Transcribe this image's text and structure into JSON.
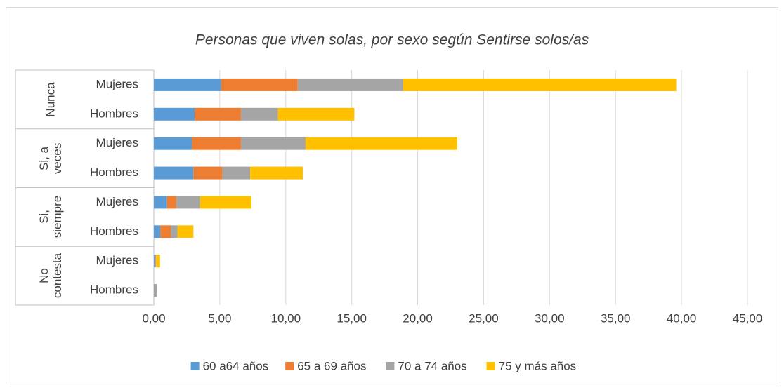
{
  "chart_data": {
    "type": "stacked_barh",
    "title": "Personas que viven solas, por sexo según Sentirse solos/as",
    "groups": [
      {
        "name": "Nunca",
        "categories": [
          "Mujeres",
          "Hombres"
        ]
      },
      {
        "name": "Si, a veces",
        "categories": [
          "Mujeres",
          "Hombres"
        ]
      },
      {
        "name": "Si, siempre",
        "categories": [
          "Mujeres",
          "Hombres"
        ]
      },
      {
        "name": "No contesta",
        "categories": [
          "Mujeres",
          "Hombres"
        ]
      }
    ],
    "series": [
      {
        "name": "60 a64 años",
        "color": "#5b9bd5",
        "values": [
          5.1,
          3.1,
          2.9,
          3.0,
          1.0,
          0.5,
          0.05,
          0.02
        ]
      },
      {
        "name": "65 a 69 años",
        "color": "#ed7d31",
        "values": [
          5.8,
          3.5,
          3.7,
          2.2,
          0.7,
          0.8,
          0.02,
          0
        ]
      },
      {
        "name": "70 a 74 años",
        "color": "#a5a5a5",
        "values": [
          8.0,
          2.8,
          4.9,
          2.1,
          1.8,
          0.5,
          0.1,
          0.2
        ]
      },
      {
        "name": "75 y más años",
        "color": "#ffc000",
        "values": [
          20.7,
          5.8,
          11.5,
          4.0,
          3.9,
          1.2,
          0.3,
          0
        ]
      }
    ],
    "xlim": [
      0,
      45
    ],
    "xticks": [
      {
        "value": 0,
        "label": "0,00"
      },
      {
        "value": 5,
        "label": "5,00"
      },
      {
        "value": 10,
        "label": "10,00"
      },
      {
        "value": 15,
        "label": "15,00"
      },
      {
        "value": 20,
        "label": "20,00"
      },
      {
        "value": 25,
        "label": "25,00"
      },
      {
        "value": 30,
        "label": "30,00"
      },
      {
        "value": 35,
        "label": "35,00"
      },
      {
        "value": 40,
        "label": "40,00"
      },
      {
        "value": 45,
        "label": "45,00"
      }
    ],
    "grid": true,
    "legend": "bottom"
  }
}
